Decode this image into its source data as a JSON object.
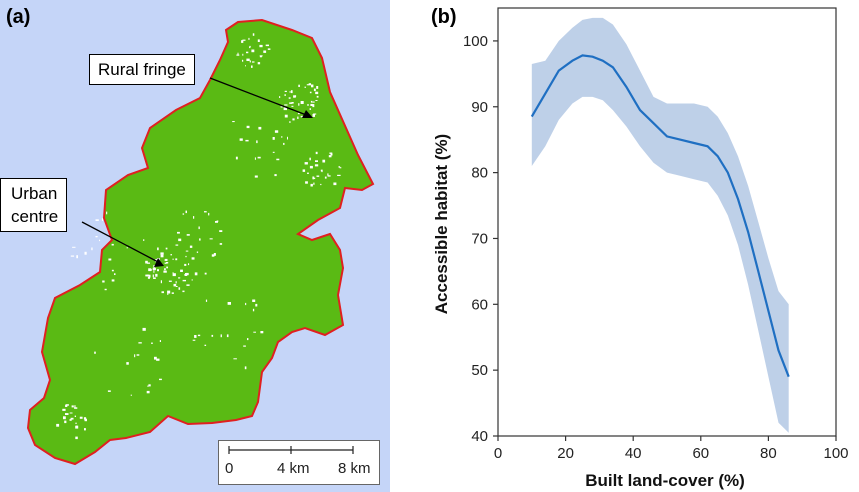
{
  "panel_a": {
    "label": "(a)",
    "callouts": {
      "rural": "Rural fringe",
      "urban_line1": "Urban",
      "urban_line2": "centre"
    },
    "scale": {
      "ticks": [
        "0",
        "4 km",
        "8 km"
      ]
    },
    "colors": {
      "sea": "#c5d5f8",
      "land": "#5aba14",
      "border": "#e02020"
    }
  },
  "chart_data": {
    "type": "line",
    "panel_label": "(b)",
    "xlabel": "Built land-cover (%)",
    "ylabel": "Accessible habitat (%)",
    "xlim": [
      0,
      100
    ],
    "ylim": [
      40,
      105
    ],
    "xticks": [
      0,
      20,
      40,
      60,
      80,
      100
    ],
    "yticks": [
      40,
      50,
      60,
      70,
      80,
      90,
      100
    ],
    "grid": false,
    "series": [
      {
        "x": [
          10,
          14,
          18,
          22,
          25,
          28,
          31,
          34,
          38,
          42,
          46,
          50,
          54,
          58,
          62,
          65,
          68,
          71,
          74,
          77,
          80,
          83,
          86
        ],
        "y": [
          88.5,
          92,
          95.5,
          97,
          97.8,
          97.6,
          97,
          96,
          93,
          89.5,
          87.5,
          85.5,
          85,
          84.5,
          84,
          82.5,
          80,
          76,
          71,
          65,
          59,
          53,
          49
        ],
        "lower": [
          81,
          84,
          88,
          90.5,
          91.5,
          91.5,
          91,
          89.5,
          87,
          84,
          81.5,
          80,
          79.5,
          79,
          78.5,
          76.5,
          73.5,
          69,
          63,
          56,
          49,
          42,
          40.5
        ],
        "upper": [
          96.5,
          97,
          100,
          102,
          103.2,
          103.5,
          103.5,
          102.5,
          99.5,
          95.5,
          91.5,
          90.5,
          90.5,
          90.5,
          90,
          88.5,
          86,
          82.5,
          78,
          72.5,
          67,
          62,
          60
        ]
      }
    ],
    "colors": {
      "line": "#1f6fc2",
      "band": "#bed0e8",
      "axis": "#333333"
    }
  }
}
